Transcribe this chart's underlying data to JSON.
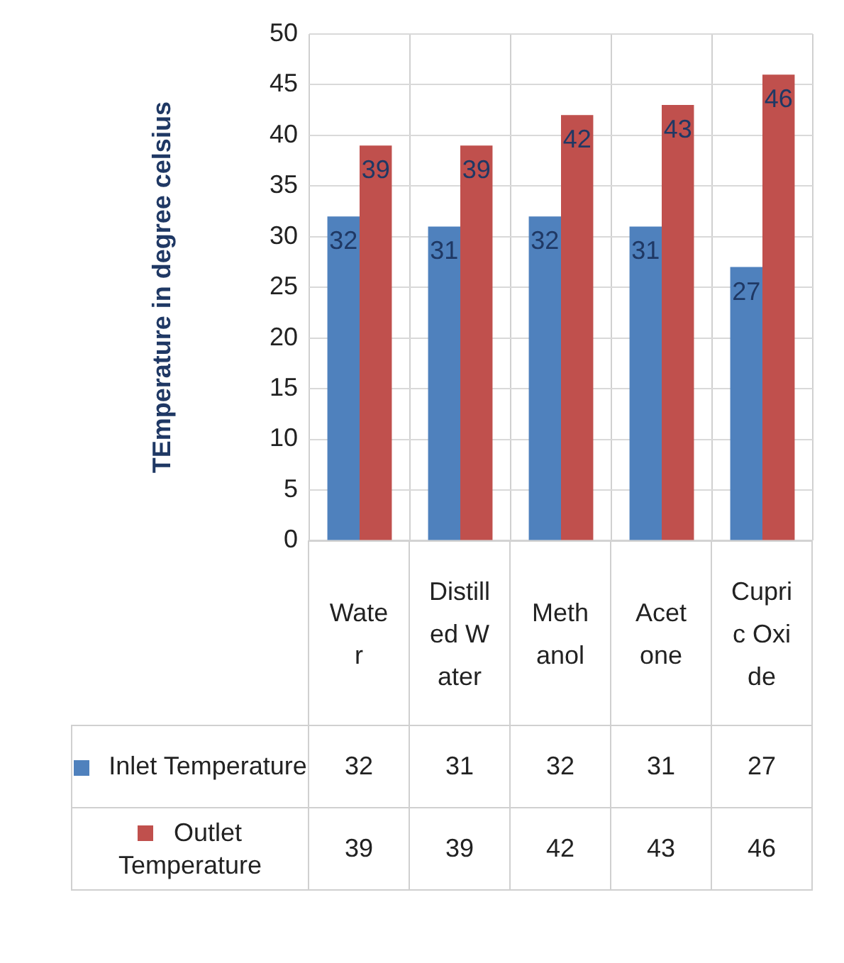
{
  "chart_data": {
    "type": "bar",
    "ylabel": "TEmperature in degree celsius",
    "categories": [
      "Water",
      "Distilled Water",
      "Methanol",
      "Acetone",
      "Cupric Oxide"
    ],
    "series": [
      {
        "name": "Inlet Temperature",
        "color": "#4f81bd",
        "values": [
          32,
          31,
          32,
          31,
          27
        ]
      },
      {
        "name": "Outlet Temperature",
        "color": "#c0504d",
        "values": [
          39,
          39,
          42,
          43,
          46
        ]
      }
    ],
    "ylim": [
      0,
      50
    ],
    "yticks": [
      0,
      5,
      10,
      15,
      20,
      25,
      30,
      35,
      40,
      45,
      50
    ],
    "grid": "y",
    "legend": "bottom",
    "data_labels": true,
    "annotations": [
      "32",
      "31",
      "32",
      "31",
      "27",
      "39",
      "39",
      "42",
      "43",
      "46"
    ]
  }
}
